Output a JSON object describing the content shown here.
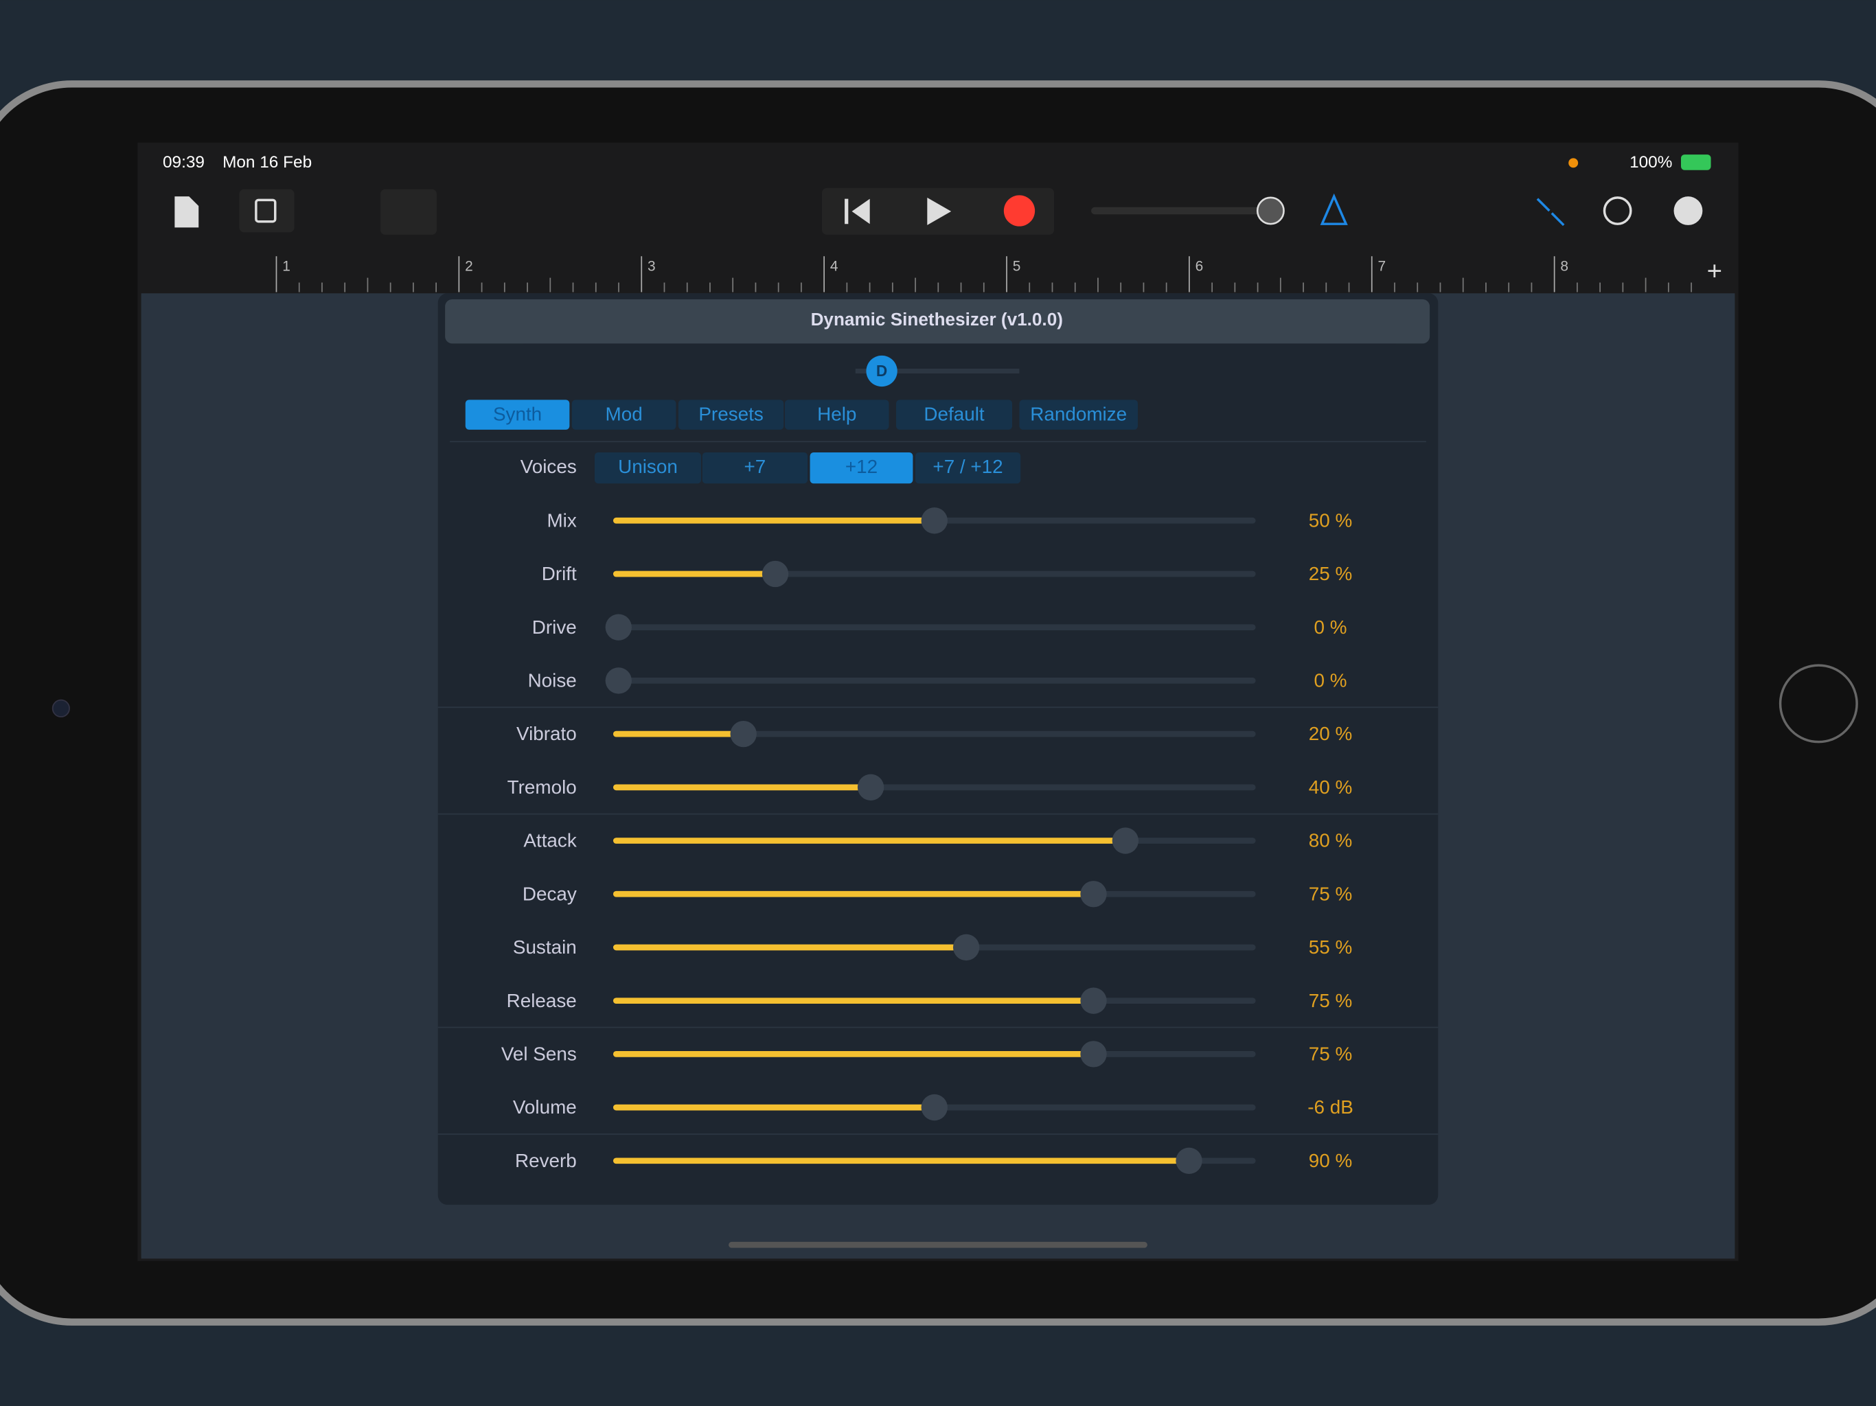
{
  "status_bar": {
    "time": "09:39",
    "date": "Mon 16 Feb",
    "battery": "100%"
  },
  "ruler": [
    1,
    2,
    3,
    4,
    5,
    6,
    7,
    8
  ],
  "panel": {
    "title": "Dynamic Sinethesizer (v1.0.0)",
    "knob": "D",
    "tabs": [
      "Synth",
      "Mod",
      "Presets",
      "Help",
      "Default",
      "Randomize"
    ],
    "voices": {
      "label": "Voices",
      "options": [
        "Unison",
        "+7",
        "+12",
        "+7 / +12"
      ]
    },
    "sliders": [
      {
        "label": "Mix",
        "position": 50,
        "display": "50 %"
      },
      {
        "label": "Drift",
        "position": 25,
        "display": "25 %"
      },
      {
        "label": "Drive",
        "position": 0,
        "display": "0 %"
      },
      {
        "label": "Noise",
        "position": 0,
        "display": "0 %"
      },
      {
        "label": "Vibrato",
        "position": 20,
        "display": "20 %"
      },
      {
        "label": "Tremolo",
        "position": 40,
        "display": "40 %"
      },
      {
        "label": "Attack",
        "position": 80,
        "display": "80 %"
      },
      {
        "label": "Decay",
        "position": 75,
        "display": "75 %"
      },
      {
        "label": "Sustain",
        "position": 55,
        "display": "55 %"
      },
      {
        "label": "Release",
        "position": 75,
        "display": "75 %"
      },
      {
        "label": "Vel Sens",
        "position": 75,
        "display": "75 %"
      },
      {
        "label": "Volume",
        "position": 50,
        "display": "-6 dB"
      },
      {
        "label": "Reverb",
        "position": 90,
        "display": "90 %"
      }
    ]
  }
}
